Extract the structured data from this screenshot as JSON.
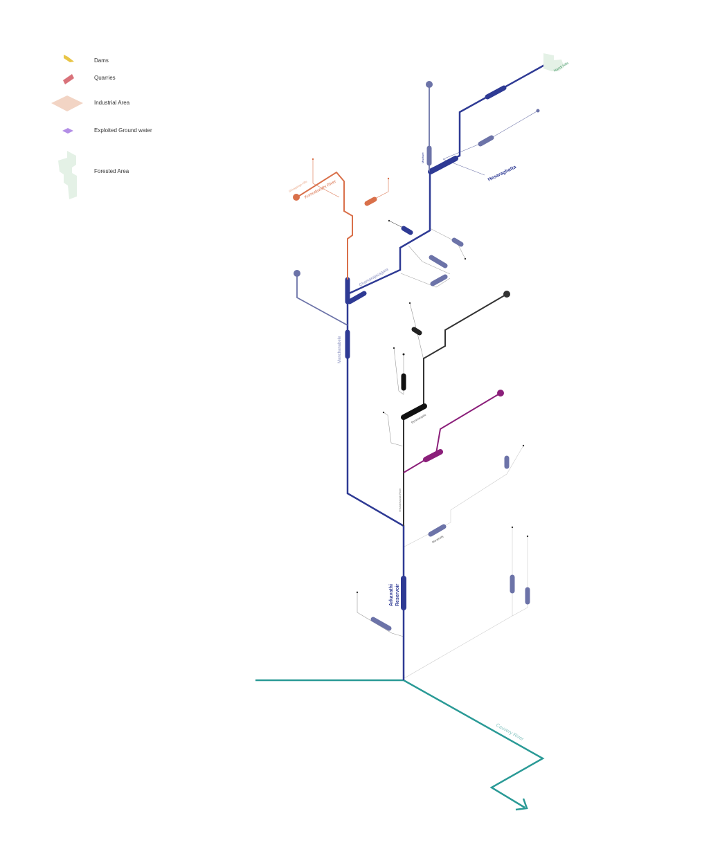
{
  "legend": {
    "dams": "Dams",
    "quarries": "Quarries",
    "industrial": "Industrial Area",
    "groundwater": "Exploited Ground water",
    "forest": "Forested Area"
  },
  "labels": {
    "nandi_hills": "Nandi Hills",
    "hesaraghatta": "Hesaraghatta",
    "kumudavathi_river": "Kumudavathi River",
    "shivagange_hills": "Shivagange Hills",
    "chamarajasagara": "Chamarajasagara",
    "manchanabele": "Manchanabele",
    "vrishabhavati_river": "Vrishabhavati River",
    "byramangala": "Byramangala",
    "arkavathi_reservoir_line1": "Arkavathi",
    "arkavathi_reservoir_line2": "Reservoir",
    "cauvery_river": "Cauvery River",
    "madhure": "Madhure",
    "marathally": "Marathally"
  },
  "colors": {
    "arkavathi": "#2e3a94",
    "kumudavathi": "#d9704a",
    "vrishabhavati": "#333333",
    "suvarnamukhi": "#8b1f7a",
    "tributary": "#6c73a8",
    "cauvery": "#2a9a96",
    "dam_legend": "#e8c547",
    "quarry_legend": "#d9727a",
    "industrial_legend": "#f2d4c4",
    "groundwater_legend": "#b38ee6",
    "forest_legend": "#e4f1e6"
  }
}
